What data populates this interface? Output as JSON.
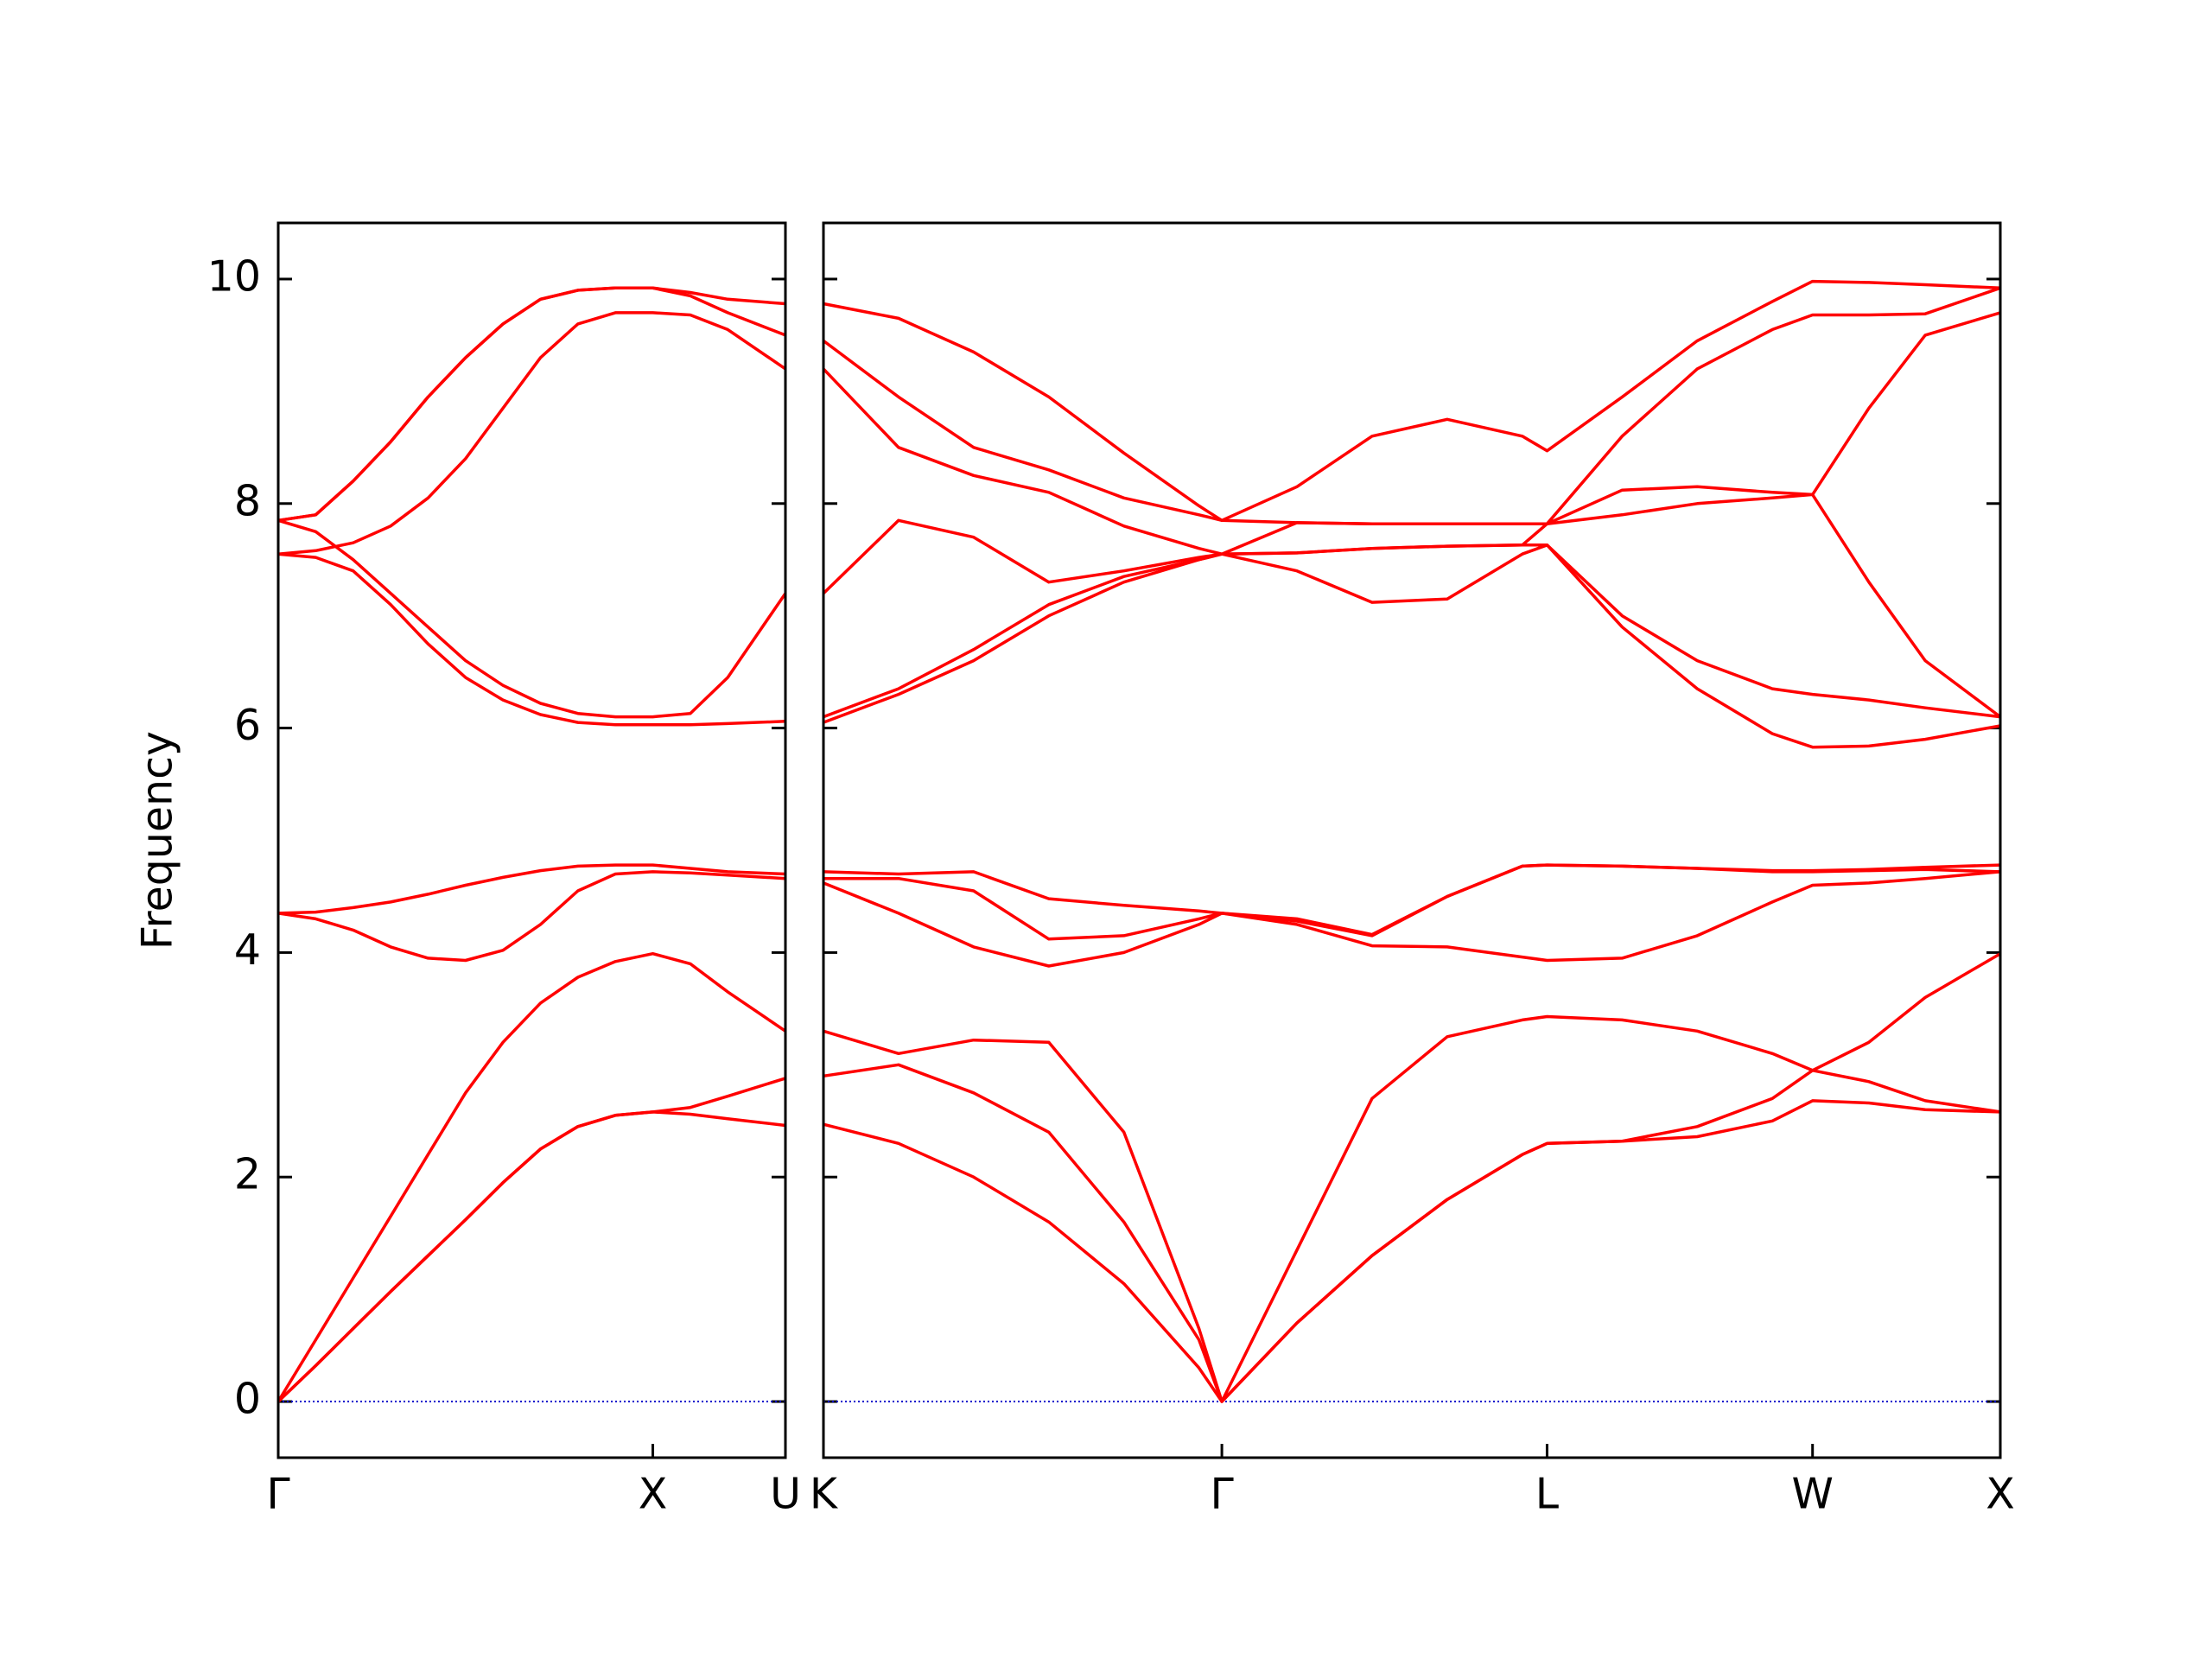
{
  "chart_data": [
    {
      "type": "line",
      "ylabel": "Frequency",
      "color": "#ff0000",
      "ytick_labels": true,
      "hline": 0,
      "hline_color": "#0000cc",
      "x": [
        0,
        0.1,
        0.2,
        0.3,
        0.4,
        0.5,
        0.6,
        0.7,
        0.8,
        0.9,
        1.0,
        1.1,
        1.2,
        1.354
      ],
      "xlim": [
        0,
        1.354
      ],
      "xticks": [
        {
          "value": 0,
          "label": "Γ"
        },
        {
          "value": 1.0,
          "label": "X"
        },
        {
          "value": 1.354,
          "label": "U"
        }
      ],
      "ylim": [
        -0.5,
        10.5
      ],
      "yticks": [
        0,
        2,
        4,
        6,
        8,
        10
      ],
      "series": [
        {
          "values": [
            0,
            0.32,
            0.65,
            0.98,
            1.3,
            1.62,
            1.95,
            2.25,
            2.45,
            2.55,
            2.58,
            2.56,
            2.52,
            2.46
          ]
        },
        {
          "values": [
            0,
            0.32,
            0.65,
            0.98,
            1.3,
            1.62,
            1.95,
            2.25,
            2.45,
            2.55,
            2.58,
            2.62,
            2.72,
            2.88
          ]
        },
        {
          "values": [
            0,
            0.55,
            1.1,
            1.65,
            2.2,
            2.75,
            3.2,
            3.55,
            3.78,
            3.92,
            3.99,
            3.9,
            3.65,
            3.3
          ]
        },
        {
          "values": [
            4.35,
            4.3,
            4.2,
            4.05,
            3.95,
            3.93,
            4.02,
            4.25,
            4.55,
            4.7,
            4.72,
            4.71,
            4.69,
            4.66
          ]
        },
        {
          "values": [
            4.35,
            4.36,
            4.4,
            4.45,
            4.52,
            4.6,
            4.67,
            4.73,
            4.77,
            4.78,
            4.78,
            4.75,
            4.72,
            4.7
          ]
        },
        {
          "values": [
            7.55,
            7.52,
            7.4,
            7.1,
            6.75,
            6.45,
            6.25,
            6.12,
            6.05,
            6.03,
            6.03,
            6.03,
            6.04,
            6.06
          ]
        },
        {
          "values": [
            7.85,
            7.75,
            7.5,
            7.2,
            6.9,
            6.6,
            6.38,
            6.22,
            6.13,
            6.1,
            6.1,
            6.13,
            6.45,
            7.2
          ]
        },
        {
          "values": [
            7.55,
            7.58,
            7.65,
            7.8,
            8.05,
            8.4,
            8.85,
            9.3,
            9.6,
            9.7,
            9.7,
            9.68,
            9.55,
            9.2
          ]
        },
        {
          "values": [
            7.85,
            7.9,
            8.2,
            8.55,
            8.95,
            9.3,
            9.6,
            9.82,
            9.9,
            9.92,
            9.92,
            9.85,
            9.7,
            9.5
          ]
        },
        {
          "values": [
            7.85,
            7.9,
            8.2,
            8.55,
            8.95,
            9.3,
            9.6,
            9.82,
            9.9,
            9.92,
            9.92,
            9.88,
            9.82,
            9.78
          ]
        }
      ]
    },
    {
      "type": "line",
      "color": "#ff0000",
      "ytick_labels": false,
      "hline": 0,
      "hline_color": "#0000cc",
      "x": [
        0,
        0.2,
        0.4,
        0.6,
        0.8,
        1.0,
        1.061,
        1.261,
        1.461,
        1.661,
        1.861,
        1.927,
        2.127,
        2.327,
        2.527,
        2.634,
        2.784,
        2.934,
        3.134
      ],
      "xlim": [
        0,
        3.134
      ],
      "xticks": [
        {
          "value": 0,
          "label": "K"
        },
        {
          "value": 1.061,
          "label": "Γ"
        },
        {
          "value": 1.927,
          "label": "L"
        },
        {
          "value": 2.634,
          "label": "W"
        },
        {
          "value": 3.134,
          "label": "X"
        }
      ],
      "ylim": [
        -0.5,
        10.5
      ],
      "yticks": [
        0,
        2,
        4,
        6,
        8,
        10
      ],
      "series": [
        {
          "values": [
            2.47,
            2.3,
            2.0,
            1.6,
            1.05,
            0.3,
            0,
            0.7,
            1.3,
            1.8,
            2.2,
            2.3,
            2.32,
            2.36,
            2.5,
            2.68,
            2.66,
            2.6,
            2.58
          ]
        },
        {
          "values": [
            2.9,
            3.0,
            2.75,
            2.4,
            1.6,
            0.55,
            0,
            0.7,
            1.3,
            1.8,
            2.2,
            2.3,
            2.32,
            2.45,
            2.7,
            2.95,
            2.85,
            2.68,
            2.58
          ]
        },
        {
          "values": [
            3.3,
            3.1,
            3.22,
            3.2,
            2.4,
            0.65,
            0,
            1.35,
            2.7,
            3.25,
            3.4,
            3.43,
            3.4,
            3.3,
            3.1,
            2.95,
            3.2,
            3.6,
            3.99
          ]
        },
        {
          "values": [
            4.62,
            4.35,
            4.05,
            3.88,
            4.0,
            4.25,
            4.35,
            4.25,
            4.06,
            4.05,
            3.96,
            3.93,
            3.95,
            4.15,
            4.45,
            4.6,
            4.62,
            4.66,
            4.72
          ]
        },
        {
          "values": [
            4.66,
            4.66,
            4.55,
            4.12,
            4.15,
            4.3,
            4.35,
            4.28,
            4.15,
            4.5,
            4.77,
            4.78,
            4.77,
            4.75,
            4.72,
            4.72,
            4.73,
            4.74,
            4.72
          ]
        },
        {
          "values": [
            4.72,
            4.7,
            4.72,
            4.48,
            4.42,
            4.37,
            4.35,
            4.3,
            4.16,
            4.5,
            4.77,
            4.78,
            4.77,
            4.75,
            4.73,
            4.73,
            4.74,
            4.76,
            4.78
          ]
        },
        {
          "values": [
            6.05,
            6.3,
            6.6,
            7.0,
            7.3,
            7.5,
            7.55,
            7.4,
            7.12,
            7.15,
            7.55,
            7.63,
            6.9,
            6.35,
            5.95,
            5.83,
            5.84,
            5.9,
            6.02
          ]
        },
        {
          "values": [
            6.1,
            6.35,
            6.7,
            7.1,
            7.35,
            7.5,
            7.55,
            7.56,
            7.6,
            7.62,
            7.63,
            7.63,
            7.0,
            6.6,
            6.35,
            6.3,
            6.25,
            6.18,
            6.1
          ]
        },
        {
          "values": [
            7.2,
            7.85,
            7.7,
            7.3,
            7.4,
            7.52,
            7.55,
            7.56,
            7.6,
            7.62,
            7.63,
            7.82,
            7.9,
            8.0,
            8.05,
            8.08,
            7.3,
            6.6,
            6.1
          ]
        },
        {
          "values": [
            9.2,
            8.5,
            8.25,
            8.1,
            7.8,
            7.6,
            7.55,
            7.83,
            7.82,
            7.82,
            7.82,
            7.82,
            8.12,
            8.15,
            8.1,
            8.08,
            8.85,
            9.5,
            9.7
          ]
        },
        {
          "values": [
            9.45,
            8.95,
            8.5,
            8.3,
            8.05,
            7.9,
            7.85,
            7.83,
            7.82,
            7.82,
            7.82,
            7.82,
            8.6,
            9.2,
            9.55,
            9.68,
            9.68,
            9.69,
            9.92
          ]
        },
        {
          "values": [
            9.78,
            9.65,
            9.35,
            8.95,
            8.45,
            7.98,
            7.85,
            8.15,
            8.6,
            8.75,
            8.6,
            8.47,
            8.95,
            9.45,
            9.8,
            9.98,
            9.97,
            9.95,
            9.92
          ]
        }
      ]
    }
  ]
}
